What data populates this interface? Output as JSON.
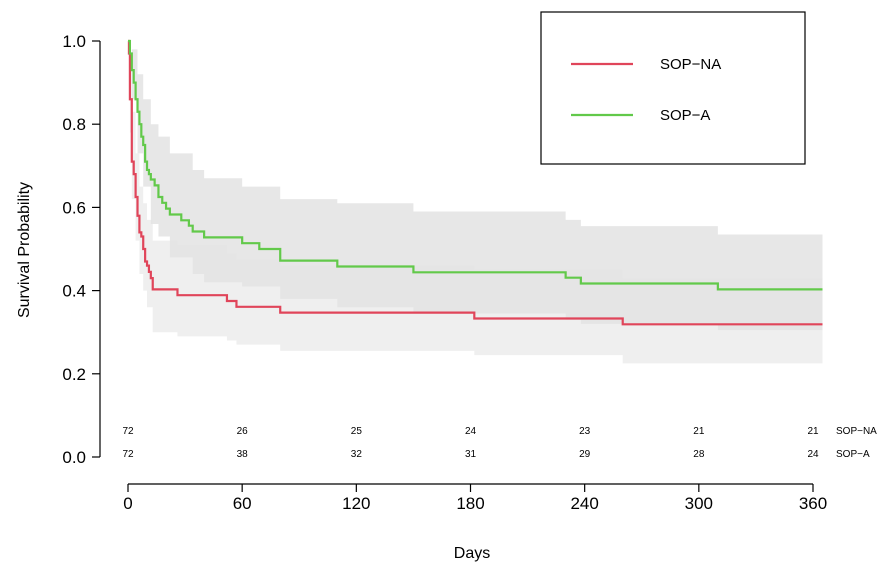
{
  "chart_data": {
    "type": "line",
    "subtype": "kaplan-meier step",
    "title": "",
    "xlabel": "Days",
    "ylabel": "Survival Probability",
    "xlim": [
      0,
      365
    ],
    "ylim": [
      0,
      1.0
    ],
    "x_ticks": [
      0,
      60,
      120,
      180,
      240,
      300,
      360
    ],
    "y_ticks": [
      "0.0",
      "0.2",
      "0.4",
      "0.6",
      "0.8",
      "1.0"
    ],
    "grid": false,
    "legend_position": "top-right",
    "series": [
      {
        "name": "SOP−NA",
        "color": "#e0455a",
        "band_color": "#efefef",
        "steps": [
          [
            0,
            1.0
          ],
          [
            0.5,
            0.97
          ],
          [
            1,
            0.86
          ],
          [
            2,
            0.71
          ],
          [
            3,
            0.68
          ],
          [
            4,
            0.625
          ],
          [
            5,
            0.58
          ],
          [
            6,
            0.54
          ],
          [
            7,
            0.53
          ],
          [
            8,
            0.5
          ],
          [
            9,
            0.47
          ],
          [
            10,
            0.46
          ],
          [
            11,
            0.445
          ],
          [
            12,
            0.43
          ],
          [
            13,
            0.403
          ],
          [
            26,
            0.389
          ],
          [
            52,
            0.375
          ],
          [
            57,
            0.361
          ],
          [
            80,
            0.347
          ],
          [
            182,
            0.333
          ],
          [
            260,
            0.319
          ],
          [
            365,
            0.319
          ]
        ],
        "ci_steps": [
          [
            0,
            1.0,
            1.0
          ],
          [
            1,
            0.94,
            0.78
          ],
          [
            2,
            0.83,
            0.62
          ],
          [
            4,
            0.73,
            0.52
          ],
          [
            6,
            0.65,
            0.44
          ],
          [
            8,
            0.61,
            0.4
          ],
          [
            10,
            0.57,
            0.36
          ],
          [
            13,
            0.52,
            0.3
          ],
          [
            26,
            0.51,
            0.29
          ],
          [
            52,
            0.49,
            0.28
          ],
          [
            57,
            0.475,
            0.27
          ],
          [
            80,
            0.46,
            0.255
          ],
          [
            182,
            0.45,
            0.245
          ],
          [
            260,
            0.43,
            0.225
          ],
          [
            365,
            0.43,
            0.225
          ]
        ]
      },
      {
        "name": "SOP−A",
        "color": "#62c94a",
        "band_color": "#e3e3e3",
        "steps": [
          [
            0,
            1.0
          ],
          [
            1,
            0.97
          ],
          [
            2,
            0.93
          ],
          [
            3,
            0.9
          ],
          [
            4,
            0.86
          ],
          [
            5,
            0.83
          ],
          [
            6,
            0.8
          ],
          [
            7,
            0.77
          ],
          [
            8,
            0.75
          ],
          [
            9,
            0.71
          ],
          [
            10,
            0.69
          ],
          [
            11,
            0.68
          ],
          [
            12,
            0.667
          ],
          [
            14,
            0.653
          ],
          [
            16,
            0.625
          ],
          [
            18,
            0.611
          ],
          [
            20,
            0.597
          ],
          [
            22,
            0.583
          ],
          [
            28,
            0.569
          ],
          [
            32,
            0.556
          ],
          [
            34,
            0.542
          ],
          [
            40,
            0.528
          ],
          [
            60,
            0.514
          ],
          [
            69,
            0.5
          ],
          [
            80,
            0.472
          ],
          [
            110,
            0.458
          ],
          [
            150,
            0.444
          ],
          [
            230,
            0.431
          ],
          [
            238,
            0.417
          ],
          [
            310,
            0.403
          ],
          [
            365,
            0.403
          ]
        ],
        "ci_steps": [
          [
            0,
            1.0,
            1.0
          ],
          [
            2,
            0.98,
            0.86
          ],
          [
            5,
            0.92,
            0.73
          ],
          [
            8,
            0.86,
            0.65
          ],
          [
            12,
            0.8,
            0.56
          ],
          [
            16,
            0.77,
            0.53
          ],
          [
            22,
            0.73,
            0.48
          ],
          [
            34,
            0.69,
            0.44
          ],
          [
            40,
            0.67,
            0.42
          ],
          [
            60,
            0.65,
            0.41
          ],
          [
            80,
            0.62,
            0.38
          ],
          [
            110,
            0.61,
            0.36
          ],
          [
            150,
            0.59,
            0.345
          ],
          [
            230,
            0.57,
            0.33
          ],
          [
            238,
            0.555,
            0.32
          ],
          [
            310,
            0.535,
            0.305
          ],
          [
            365,
            0.535,
            0.305
          ]
        ]
      }
    ],
    "risk_table": {
      "times": [
        0,
        60,
        120,
        180,
        240,
        300,
        360
      ],
      "rows": [
        {
          "label": "SOP−NA",
          "values": [
            "72",
            "26",
            "25",
            "24",
            "23",
            "21",
            "21"
          ]
        },
        {
          "label": "SOP−A",
          "values": [
            "72",
            "38",
            "32",
            "31",
            "29",
            "28",
            "24"
          ]
        }
      ]
    }
  }
}
